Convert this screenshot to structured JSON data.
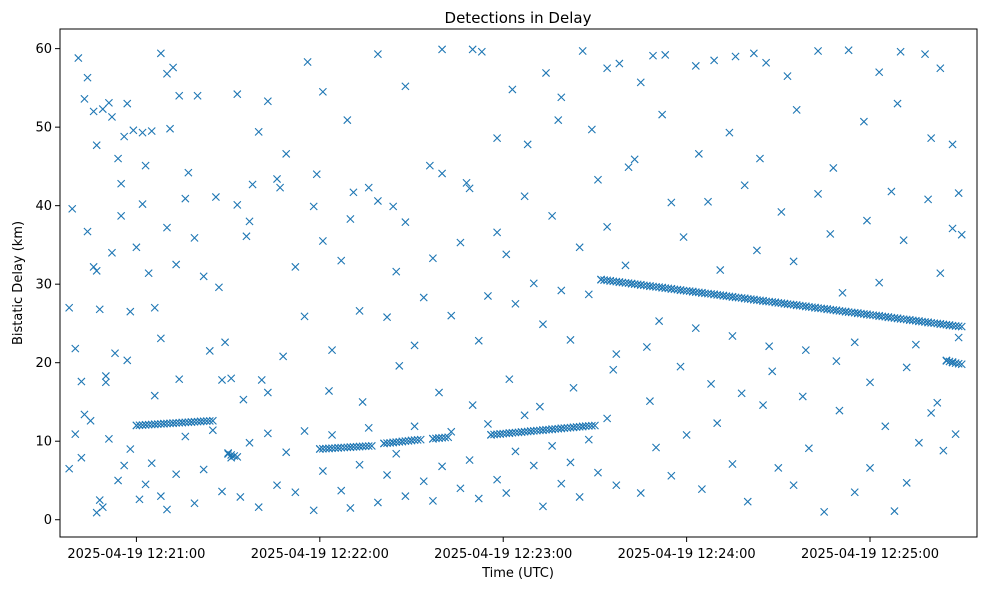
{
  "chart_data": {
    "type": "scatter",
    "title": "Detections in Delay",
    "xlabel": "Time (UTC)",
    "ylabel": "Bistatic Delay (km)",
    "marker": "x",
    "color": "#1f77b4",
    "grid": false,
    "legend": "none",
    "x_range": [
      "2025-04-19 12:20:35",
      "2025-04-19 12:25:35"
    ],
    "ylim": [
      -2.2,
      62.5
    ],
    "x_ticks": [
      "2025-04-19 12:21:00",
      "2025-04-19 12:22:00",
      "2025-04-19 12:23:00",
      "2025-04-19 12:24:00",
      "2025-04-19 12:25:00"
    ],
    "y_ticks": [
      "0",
      "10",
      "20",
      "30",
      "40",
      "50",
      "60"
    ],
    "tracks": [
      {
        "x_start": "2025-04-19 12:21:00",
        "x_end": "2025-04-19 12:21:25",
        "y_start": 12.0,
        "y_end": 12.6
      },
      {
        "x_start": "2025-04-19 12:21:30",
        "x_end": "2025-04-19 12:21:33",
        "y_start": 8.5,
        "y_end": 8.0
      },
      {
        "x_start": "2025-04-19 12:22:00",
        "x_end": "2025-04-19 12:22:17",
        "y_start": 9.0,
        "y_end": 9.4
      },
      {
        "x_start": "2025-04-19 12:22:21",
        "x_end": "2025-04-19 12:22:33",
        "y_start": 9.7,
        "y_end": 10.2
      },
      {
        "x_start": "2025-04-19 12:22:37",
        "x_end": "2025-04-19 12:22:42",
        "y_start": 10.3,
        "y_end": 10.5
      },
      {
        "x_start": "2025-04-19 12:22:56",
        "x_end": "2025-04-19 12:23:30",
        "y_start": 10.8,
        "y_end": 12.0
      },
      {
        "x_start": "2025-04-19 12:23:32",
        "x_end": "2025-04-19 12:25:30",
        "y_start": 30.6,
        "y_end": 24.6
      },
      {
        "x_start": "2025-04-19 12:25:25",
        "x_end": "2025-04-19 12:25:30",
        "y_start": 20.3,
        "y_end": 19.8
      }
    ],
    "scatter_points": [
      [
        "2025-04-19 12:20:39",
        39.6
      ],
      [
        "2025-04-19 12:20:41",
        58.8
      ],
      [
        "2025-04-19 12:20:43",
        53.6
      ],
      [
        "2025-04-19 12:20:44",
        56.3
      ],
      [
        "2025-04-19 12:20:46",
        52.0
      ],
      [
        "2025-04-19 12:20:47",
        47.7
      ],
      [
        "2025-04-19 12:20:49",
        52.3
      ],
      [
        "2025-04-19 12:20:51",
        53.1
      ],
      [
        "2025-04-19 12:20:52",
        51.3
      ],
      [
        "2025-04-19 12:20:54",
        46.0
      ],
      [
        "2025-04-19 12:20:56",
        48.8
      ],
      [
        "2025-04-19 12:20:57",
        53.0
      ],
      [
        "2025-04-19 12:20:59",
        49.6
      ],
      [
        "2025-04-19 12:21:02",
        49.3
      ],
      [
        "2025-04-19 12:21:05",
        49.5
      ],
      [
        "2025-04-19 12:21:08",
        59.4
      ],
      [
        "2025-04-19 12:21:10",
        56.8
      ],
      [
        "2025-04-19 12:21:12",
        57.6
      ],
      [
        "2025-04-19 12:21:14",
        54.0
      ],
      [
        "2025-04-19 12:21:20",
        54.0
      ],
      [
        "2025-04-19 12:21:33",
        54.2
      ],
      [
        "2025-04-19 12:21:40",
        49.4
      ],
      [
        "2025-04-19 12:21:43",
        53.3
      ],
      [
        "2025-04-19 12:21:56",
        58.3
      ],
      [
        "2025-04-19 12:22:01",
        54.5
      ],
      [
        "2025-04-19 12:22:09",
        50.9
      ],
      [
        "2025-04-19 12:22:19",
        59.3
      ],
      [
        "2025-04-19 12:22:28",
        55.2
      ],
      [
        "2025-04-19 12:22:40",
        59.9
      ],
      [
        "2025-04-19 12:22:50",
        59.9
      ],
      [
        "2025-04-19 12:22:53",
        59.6
      ],
      [
        "2025-04-19 12:23:03",
        54.8
      ],
      [
        "2025-04-19 12:23:14",
        56.9
      ],
      [
        "2025-04-19 12:23:19",
        53.8
      ],
      [
        "2025-04-19 12:23:26",
        59.7
      ],
      [
        "2025-04-19 12:23:34",
        57.5
      ],
      [
        "2025-04-19 12:23:38",
        58.1
      ],
      [
        "2025-04-19 12:23:45",
        55.7
      ],
      [
        "2025-04-19 12:23:49",
        59.1
      ],
      [
        "2025-04-19 12:23:53",
        59.2
      ],
      [
        "2025-04-19 12:24:03",
        57.8
      ],
      [
        "2025-04-19 12:24:09",
        58.5
      ],
      [
        "2025-04-19 12:24:16",
        59.0
      ],
      [
        "2025-04-19 12:24:22",
        59.4
      ],
      [
        "2025-04-19 12:24:26",
        58.2
      ],
      [
        "2025-04-19 12:24:33",
        56.5
      ],
      [
        "2025-04-19 12:24:43",
        59.7
      ],
      [
        "2025-04-19 12:24:53",
        59.8
      ],
      [
        "2025-04-19 12:25:03",
        57.0
      ],
      [
        "2025-04-19 12:25:10",
        59.6
      ],
      [
        "2025-04-19 12:25:18",
        59.3
      ],
      [
        "2025-04-19 12:25:23",
        57.5
      ],
      [
        "2025-04-19 12:20:38",
        27.0
      ],
      [
        "2025-04-19 12:20:40",
        21.8
      ],
      [
        "2025-04-19 12:20:42",
        17.6
      ],
      [
        "2025-04-19 12:20:44",
        36.7
      ],
      [
        "2025-04-19 12:20:46",
        32.2
      ],
      [
        "2025-04-19 12:20:47",
        31.7
      ],
      [
        "2025-04-19 12:20:48",
        26.8
      ],
      [
        "2025-04-19 12:20:50",
        18.3
      ],
      [
        "2025-04-19 12:20:52",
        34.0
      ],
      [
        "2025-04-19 12:20:53",
        21.2
      ],
      [
        "2025-04-19 12:20:55",
        38.7
      ],
      [
        "2025-04-19 12:20:58",
        26.5
      ],
      [
        "2025-04-19 12:21:00",
        34.7
      ],
      [
        "2025-04-19 12:21:02",
        40.2
      ],
      [
        "2025-04-19 12:21:04",
        31.4
      ],
      [
        "2025-04-19 12:21:06",
        27.0
      ],
      [
        "2025-04-19 12:21:08",
        23.1
      ],
      [
        "2025-04-19 12:21:10",
        37.2
      ],
      [
        "2025-04-19 12:21:13",
        32.5
      ],
      [
        "2025-04-19 12:21:16",
        40.9
      ],
      [
        "2025-04-19 12:21:19",
        35.9
      ],
      [
        "2025-04-19 12:21:22",
        31.0
      ],
      [
        "2025-04-19 12:21:24",
        21.5
      ],
      [
        "2025-04-19 12:21:27",
        29.6
      ],
      [
        "2025-04-19 12:21:29",
        22.6
      ],
      [
        "2025-04-19 12:21:31",
        18.0
      ],
      [
        "2025-04-19 12:21:33",
        40.1
      ],
      [
        "2025-04-19 12:21:36",
        36.1
      ],
      [
        "2025-04-19 12:21:38",
        42.7
      ],
      [
        "2025-04-19 12:21:41",
        17.8
      ],
      [
        "2025-04-19 12:21:43",
        16.2
      ],
      [
        "2025-04-19 12:21:46",
        43.4
      ],
      [
        "2025-04-19 12:21:49",
        46.6
      ],
      [
        "2025-04-19 12:21:52",
        32.2
      ],
      [
        "2025-04-19 12:21:55",
        25.9
      ],
      [
        "2025-04-19 12:21:58",
        39.9
      ],
      [
        "2025-04-19 12:22:01",
        35.5
      ],
      [
        "2025-04-19 12:22:04",
        21.6
      ],
      [
        "2025-04-19 12:22:07",
        33.0
      ],
      [
        "2025-04-19 12:22:10",
        38.3
      ],
      [
        "2025-04-19 12:22:13",
        26.6
      ],
      [
        "2025-04-19 12:22:16",
        42.3
      ],
      [
        "2025-04-19 12:22:19",
        40.6
      ],
      [
        "2025-04-19 12:22:22",
        25.8
      ],
      [
        "2025-04-19 12:22:25",
        31.6
      ],
      [
        "2025-04-19 12:22:28",
        37.9
      ],
      [
        "2025-04-19 12:22:31",
        22.2
      ],
      [
        "2025-04-19 12:22:34",
        28.3
      ],
      [
        "2025-04-19 12:22:37",
        33.3
      ],
      [
        "2025-04-19 12:22:40",
        44.1
      ],
      [
        "2025-04-19 12:22:43",
        26.0
      ],
      [
        "2025-04-19 12:22:46",
        35.3
      ],
      [
        "2025-04-19 12:22:49",
        42.2
      ],
      [
        "2025-04-19 12:22:52",
        22.8
      ],
      [
        "2025-04-19 12:22:55",
        28.5
      ],
      [
        "2025-04-19 12:22:58",
        36.6
      ],
      [
        "2025-04-19 12:23:01",
        33.8
      ],
      [
        "2025-04-19 12:23:04",
        27.5
      ],
      [
        "2025-04-19 12:23:07",
        41.2
      ],
      [
        "2025-04-19 12:23:10",
        30.1
      ],
      [
        "2025-04-19 12:23:13",
        24.9
      ],
      [
        "2025-04-19 12:23:16",
        38.7
      ],
      [
        "2025-04-19 12:23:19",
        29.2
      ],
      [
        "2025-04-19 12:23:22",
        22.9
      ],
      [
        "2025-04-19 12:23:25",
        34.7
      ],
      [
        "2025-04-19 12:23:28",
        28.7
      ],
      [
        "2025-04-19 12:23:31",
        43.3
      ],
      [
        "2025-04-19 12:23:34",
        37.3
      ],
      [
        "2025-04-19 12:23:37",
        21.1
      ],
      [
        "2025-04-19 12:23:40",
        32.4
      ],
      [
        "2025-04-19 12:23:43",
        45.9
      ],
      [
        "2025-04-19 12:23:47",
        22.0
      ],
      [
        "2025-04-19 12:23:51",
        25.3
      ],
      [
        "2025-04-19 12:23:55",
        40.4
      ],
      [
        "2025-04-19 12:23:59",
        36.0
      ],
      [
        "2025-04-19 12:24:03",
        24.4
      ],
      [
        "2025-04-19 12:24:07",
        40.5
      ],
      [
        "2025-04-19 12:24:11",
        31.8
      ],
      [
        "2025-04-19 12:24:15",
        23.4
      ],
      [
        "2025-04-19 12:24:19",
        42.6
      ],
      [
        "2025-04-19 12:24:23",
        34.3
      ],
      [
        "2025-04-19 12:24:27",
        22.1
      ],
      [
        "2025-04-19 12:24:31",
        39.2
      ],
      [
        "2025-04-19 12:24:35",
        32.9
      ],
      [
        "2025-04-19 12:24:39",
        21.6
      ],
      [
        "2025-04-19 12:24:43",
        41.5
      ],
      [
        "2025-04-19 12:24:47",
        36.4
      ],
      [
        "2025-04-19 12:24:51",
        28.9
      ],
      [
        "2025-04-19 12:24:55",
        22.6
      ],
      [
        "2025-04-19 12:24:59",
        38.1
      ],
      [
        "2025-04-19 12:25:03",
        30.2
      ],
      [
        "2025-04-19 12:25:07",
        41.8
      ],
      [
        "2025-04-19 12:25:11",
        35.6
      ],
      [
        "2025-04-19 12:25:15",
        22.3
      ],
      [
        "2025-04-19 12:25:19",
        40.8
      ],
      [
        "2025-04-19 12:25:23",
        31.4
      ],
      [
        "2025-04-19 12:25:27",
        37.1
      ],
      [
        "2025-04-19 12:25:30",
        36.3
      ],
      [
        "2025-04-19 12:20:38",
        6.5
      ],
      [
        "2025-04-19 12:20:40",
        10.9
      ],
      [
        "2025-04-19 12:20:42",
        7.9
      ],
      [
        "2025-04-19 12:20:45",
        12.6
      ],
      [
        "2025-04-19 12:20:47",
        0.9
      ],
      [
        "2025-04-19 12:20:48",
        2.5
      ],
      [
        "2025-04-19 12:20:49",
        1.6
      ],
      [
        "2025-04-19 12:20:51",
        10.3
      ],
      [
        "2025-04-19 12:20:54",
        5.0
      ],
      [
        "2025-04-19 12:20:56",
        6.9
      ],
      [
        "2025-04-19 12:20:58",
        9.0
      ],
      [
        "2025-04-19 12:21:01",
        2.6
      ],
      [
        "2025-04-19 12:21:03",
        4.5
      ],
      [
        "2025-04-19 12:21:05",
        7.2
      ],
      [
        "2025-04-19 12:21:08",
        3.0
      ],
      [
        "2025-04-19 12:21:10",
        1.3
      ],
      [
        "2025-04-19 12:21:13",
        5.8
      ],
      [
        "2025-04-19 12:21:16",
        10.6
      ],
      [
        "2025-04-19 12:21:19",
        2.1
      ],
      [
        "2025-04-19 12:21:22",
        6.4
      ],
      [
        "2025-04-19 12:21:25",
        11.4
      ],
      [
        "2025-04-19 12:21:28",
        3.6
      ],
      [
        "2025-04-19 12:21:31",
        7.9
      ],
      [
        "2025-04-19 12:21:34",
        2.9
      ],
      [
        "2025-04-19 12:21:37",
        9.8
      ],
      [
        "2025-04-19 12:21:40",
        1.6
      ],
      [
        "2025-04-19 12:21:43",
        11.0
      ],
      [
        "2025-04-19 12:21:46",
        4.4
      ],
      [
        "2025-04-19 12:21:49",
        8.6
      ],
      [
        "2025-04-19 12:21:52",
        3.5
      ],
      [
        "2025-04-19 12:21:55",
        11.3
      ],
      [
        "2025-04-19 12:21:58",
        1.2
      ],
      [
        "2025-04-19 12:22:01",
        6.2
      ],
      [
        "2025-04-19 12:22:04",
        10.8
      ],
      [
        "2025-04-19 12:22:07",
        3.7
      ],
      [
        "2025-04-19 12:22:10",
        1.5
      ],
      [
        "2025-04-19 12:22:13",
        7.0
      ],
      [
        "2025-04-19 12:22:16",
        11.7
      ],
      [
        "2025-04-19 12:22:19",
        2.2
      ],
      [
        "2025-04-19 12:22:22",
        5.7
      ],
      [
        "2025-04-19 12:22:25",
        8.4
      ],
      [
        "2025-04-19 12:22:28",
        3.0
      ],
      [
        "2025-04-19 12:22:31",
        11.9
      ],
      [
        "2025-04-19 12:22:34",
        4.9
      ],
      [
        "2025-04-19 12:22:37",
        2.4
      ],
      [
        "2025-04-19 12:22:40",
        6.8
      ],
      [
        "2025-04-19 12:22:43",
        11.2
      ],
      [
        "2025-04-19 12:22:46",
        4.0
      ],
      [
        "2025-04-19 12:22:49",
        7.6
      ],
      [
        "2025-04-19 12:22:52",
        2.7
      ],
      [
        "2025-04-19 12:22:55",
        12.2
      ],
      [
        "2025-04-19 12:22:58",
        5.1
      ],
      [
        "2025-04-19 12:23:01",
        3.4
      ],
      [
        "2025-04-19 12:23:04",
        8.7
      ],
      [
        "2025-04-19 12:23:07",
        13.3
      ],
      [
        "2025-04-19 12:23:10",
        6.9
      ],
      [
        "2025-04-19 12:23:13",
        1.7
      ],
      [
        "2025-04-19 12:23:16",
        9.4
      ],
      [
        "2025-04-19 12:23:19",
        4.6
      ],
      [
        "2025-04-19 12:23:22",
        7.3
      ],
      [
        "2025-04-19 12:23:25",
        2.9
      ],
      [
        "2025-04-19 12:23:28",
        10.2
      ],
      [
        "2025-04-19 12:23:31",
        6.0
      ],
      [
        "2025-04-19 12:23:34",
        12.9
      ],
      [
        "2025-04-19 12:23:37",
        4.4
      ],
      [
        "2025-04-19 12:23:45",
        3.4
      ],
      [
        "2025-04-19 12:23:50",
        9.2
      ],
      [
        "2025-04-19 12:23:55",
        5.6
      ],
      [
        "2025-04-19 12:24:00",
        10.8
      ],
      [
        "2025-04-19 12:24:05",
        3.9
      ],
      [
        "2025-04-19 12:24:10",
        12.3
      ],
      [
        "2025-04-19 12:24:15",
        7.1
      ],
      [
        "2025-04-19 12:24:20",
        2.3
      ],
      [
        "2025-04-19 12:24:25",
        14.6
      ],
      [
        "2025-04-19 12:24:30",
        6.6
      ],
      [
        "2025-04-19 12:24:35",
        4.4
      ],
      [
        "2025-04-19 12:24:40",
        9.1
      ],
      [
        "2025-04-19 12:24:45",
        1.0
      ],
      [
        "2025-04-19 12:24:50",
        13.9
      ],
      [
        "2025-04-19 12:24:55",
        3.5
      ],
      [
        "2025-04-19 12:25:00",
        6.6
      ],
      [
        "2025-04-19 12:25:05",
        11.9
      ],
      [
        "2025-04-19 12:25:08",
        1.1
      ],
      [
        "2025-04-19 12:25:12",
        4.7
      ],
      [
        "2025-04-19 12:25:16",
        9.8
      ],
      [
        "2025-04-19 12:25:20",
        13.6
      ],
      [
        "2025-04-19 12:25:24",
        8.8
      ],
      [
        "2025-04-19 12:25:28",
        10.9
      ],
      [
        "2025-04-19 12:20:55",
        42.8
      ],
      [
        "2025-04-19 12:21:03",
        45.1
      ],
      [
        "2025-04-19 12:21:11",
        49.8
      ],
      [
        "2025-04-19 12:21:17",
        44.2
      ],
      [
        "2025-04-19 12:21:26",
        41.1
      ],
      [
        "2025-04-19 12:21:37",
        38.0
      ],
      [
        "2025-04-19 12:21:47",
        42.3
      ],
      [
        "2025-04-19 12:21:59",
        44.0
      ],
      [
        "2025-04-19 12:22:11",
        41.7
      ],
      [
        "2025-04-19 12:22:24",
        39.9
      ],
      [
        "2025-04-19 12:22:36",
        45.1
      ],
      [
        "2025-04-19 12:22:48",
        42.9
      ],
      [
        "2025-04-19 12:22:58",
        48.6
      ],
      [
        "2025-04-19 12:23:08",
        47.8
      ],
      [
        "2025-04-19 12:23:18",
        50.9
      ],
      [
        "2025-04-19 12:23:29",
        49.7
      ],
      [
        "2025-04-19 12:23:41",
        44.9
      ],
      [
        "2025-04-19 12:23:52",
        51.6
      ],
      [
        "2025-04-19 12:24:04",
        46.6
      ],
      [
        "2025-04-19 12:24:14",
        49.3
      ],
      [
        "2025-04-19 12:24:24",
        46.0
      ],
      [
        "2025-04-19 12:24:36",
        52.2
      ],
      [
        "2025-04-19 12:24:48",
        44.8
      ],
      [
        "2025-04-19 12:24:58",
        50.7
      ],
      [
        "2025-04-19 12:25:09",
        53.0
      ],
      [
        "2025-04-19 12:25:20",
        48.6
      ],
      [
        "2025-04-19 12:25:27",
        47.8
      ],
      [
        "2025-04-19 12:25:29",
        41.6
      ],
      [
        "2025-04-19 12:20:43",
        13.4
      ],
      [
        "2025-04-19 12:20:50",
        17.5
      ],
      [
        "2025-04-19 12:20:57",
        20.3
      ],
      [
        "2025-04-19 12:21:06",
        15.8
      ],
      [
        "2025-04-19 12:21:14",
        17.9
      ],
      [
        "2025-04-19 12:21:28",
        17.8
      ],
      [
        "2025-04-19 12:21:35",
        15.3
      ],
      [
        "2025-04-19 12:21:48",
        20.8
      ],
      [
        "2025-04-19 12:22:03",
        16.4
      ],
      [
        "2025-04-19 12:22:14",
        15.0
      ],
      [
        "2025-04-19 12:22:26",
        19.6
      ],
      [
        "2025-04-19 12:22:39",
        16.2
      ],
      [
        "2025-04-19 12:22:50",
        14.6
      ],
      [
        "2025-04-19 12:23:02",
        17.9
      ],
      [
        "2025-04-19 12:23:12",
        14.4
      ],
      [
        "2025-04-19 12:23:23",
        16.8
      ],
      [
        "2025-04-19 12:23:36",
        19.1
      ],
      [
        "2025-04-19 12:23:48",
        15.1
      ],
      [
        "2025-04-19 12:23:58",
        19.5
      ],
      [
        "2025-04-19 12:24:08",
        17.3
      ],
      [
        "2025-04-19 12:24:18",
        16.1
      ],
      [
        "2025-04-19 12:24:28",
        18.9
      ],
      [
        "2025-04-19 12:24:38",
        15.7
      ],
      [
        "2025-04-19 12:24:49",
        20.2
      ],
      [
        "2025-04-19 12:25:00",
        17.5
      ],
      [
        "2025-04-19 12:25:12",
        19.4
      ],
      [
        "2025-04-19 12:25:22",
        14.9
      ],
      [
        "2025-04-19 12:25:29",
        23.2
      ]
    ]
  }
}
